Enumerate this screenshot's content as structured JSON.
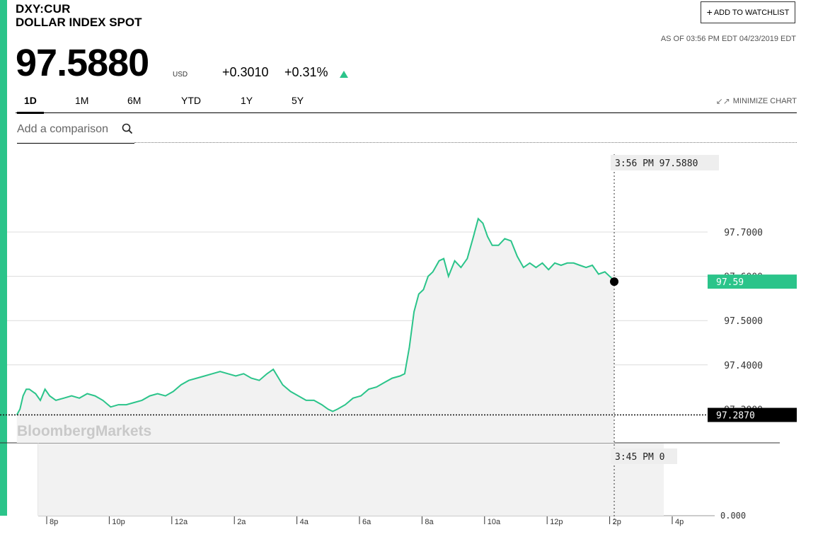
{
  "header": {
    "ticker": "DXY:CUR",
    "name": "DOLLAR INDEX SPOT",
    "watchlist_label": "ADD TO WATCHLIST",
    "as_of": "AS OF 03:56 PM EDT 04/23/2019 EDT",
    "price": "97.5880",
    "currency": "USD",
    "change": "+0.3010",
    "change_pct": "+0.31%",
    "accent_color": "#2bc48a"
  },
  "tabs": [
    {
      "label": "1D",
      "active": true
    },
    {
      "label": "1M",
      "active": false
    },
    {
      "label": "6M",
      "active": false
    },
    {
      "label": "YTD",
      "active": false
    },
    {
      "label": "1Y",
      "active": false
    },
    {
      "label": "5Y",
      "active": false
    }
  ],
  "minimize_label": "MINIMIZE CHART",
  "compare_placeholder": "Add a comparison",
  "watermark": "BloombergMarkets",
  "chart_data": {
    "type": "line",
    "x_ticks": [
      "8p",
      "10p",
      "12a",
      "2a",
      "4a",
      "6a",
      "8a",
      "10a",
      "12p",
      "2p",
      "4p"
    ],
    "y_ticks": [
      "97.7000",
      "97.5000",
      "97.4000"
    ],
    "y_ticks_hidden": [
      "97.6000",
      "97.3000"
    ],
    "ylim": [
      97.2,
      97.8
    ],
    "prev_close": "97.2870",
    "last_label": "97.59",
    "crosshair_label": "3:56 PM 97.5880",
    "volume_label": "3:45 PM 0",
    "volume_axis_label": "0.000",
    "line_color": "#2bc48a",
    "series": [
      {
        "values": [
          [
            19.0,
            97.287
          ],
          [
            19.1,
            97.3
          ],
          [
            19.2,
            97.33
          ],
          [
            19.3,
            97.345
          ],
          [
            19.4,
            97.345
          ],
          [
            19.5,
            97.34
          ],
          [
            19.6,
            97.335
          ],
          [
            19.75,
            97.32
          ],
          [
            19.9,
            97.345
          ],
          [
            20.05,
            97.33
          ],
          [
            20.25,
            97.32
          ],
          [
            20.5,
            97.325
          ],
          [
            20.75,
            97.33
          ],
          [
            21.0,
            97.325
          ],
          [
            21.25,
            97.335
          ],
          [
            21.5,
            97.33
          ],
          [
            21.75,
            97.32
          ],
          [
            22.0,
            97.305
          ],
          [
            22.25,
            97.31
          ],
          [
            22.5,
            97.31
          ],
          [
            22.75,
            97.315
          ],
          [
            23.0,
            97.32
          ],
          [
            23.25,
            97.33
          ],
          [
            23.5,
            97.335
          ],
          [
            23.75,
            97.33
          ],
          [
            24.0,
            97.34
          ],
          [
            24.25,
            97.355
          ],
          [
            24.5,
            97.365
          ],
          [
            24.75,
            97.37
          ],
          [
            25.0,
            97.375
          ],
          [
            25.25,
            97.38
          ],
          [
            25.5,
            97.385
          ],
          [
            25.75,
            97.38
          ],
          [
            26.0,
            97.375
          ],
          [
            26.25,
            97.38
          ],
          [
            26.5,
            97.37
          ],
          [
            26.75,
            97.365
          ],
          [
            27.0,
            97.38
          ],
          [
            27.2,
            97.39
          ],
          [
            27.5,
            97.355
          ],
          [
            27.75,
            97.34
          ],
          [
            28.0,
            97.33
          ],
          [
            28.25,
            97.32
          ],
          [
            28.5,
            97.32
          ],
          [
            28.75,
            97.31
          ],
          [
            28.95,
            97.3
          ],
          [
            29.1,
            97.295
          ],
          [
            29.25,
            97.3
          ],
          [
            29.5,
            97.31
          ],
          [
            29.75,
            97.325
          ],
          [
            30.0,
            97.33
          ],
          [
            30.25,
            97.345
          ],
          [
            30.5,
            97.35
          ],
          [
            30.75,
            97.36
          ],
          [
            31.0,
            97.37
          ],
          [
            31.25,
            97.375
          ],
          [
            31.4,
            97.38
          ],
          [
            31.55,
            97.44
          ],
          [
            31.7,
            97.52
          ],
          [
            31.85,
            97.56
          ],
          [
            32.0,
            97.57
          ],
          [
            32.15,
            97.6
          ],
          [
            32.3,
            97.61
          ],
          [
            32.5,
            97.635
          ],
          [
            32.65,
            97.64
          ],
          [
            32.8,
            97.6
          ],
          [
            33.0,
            97.635
          ],
          [
            33.2,
            97.62
          ],
          [
            33.4,
            97.64
          ],
          [
            33.6,
            97.69
          ],
          [
            33.75,
            97.73
          ],
          [
            33.9,
            97.72
          ],
          [
            34.05,
            97.69
          ],
          [
            34.2,
            97.67
          ],
          [
            34.4,
            97.67
          ],
          [
            34.6,
            97.685
          ],
          [
            34.8,
            97.68
          ],
          [
            35.0,
            97.645
          ],
          [
            35.2,
            97.62
          ],
          [
            35.4,
            97.63
          ],
          [
            35.6,
            97.62
          ],
          [
            35.8,
            97.63
          ],
          [
            36.0,
            97.615
          ],
          [
            36.2,
            97.63
          ],
          [
            36.4,
            97.625
          ],
          [
            36.6,
            97.63
          ],
          [
            36.8,
            97.63
          ],
          [
            37.0,
            97.625
          ],
          [
            37.2,
            97.62
          ],
          [
            37.4,
            97.625
          ],
          [
            37.6,
            97.605
          ],
          [
            37.8,
            97.61
          ],
          [
            38.0,
            97.597
          ],
          [
            38.1,
            97.588
          ]
        ]
      }
    ]
  }
}
